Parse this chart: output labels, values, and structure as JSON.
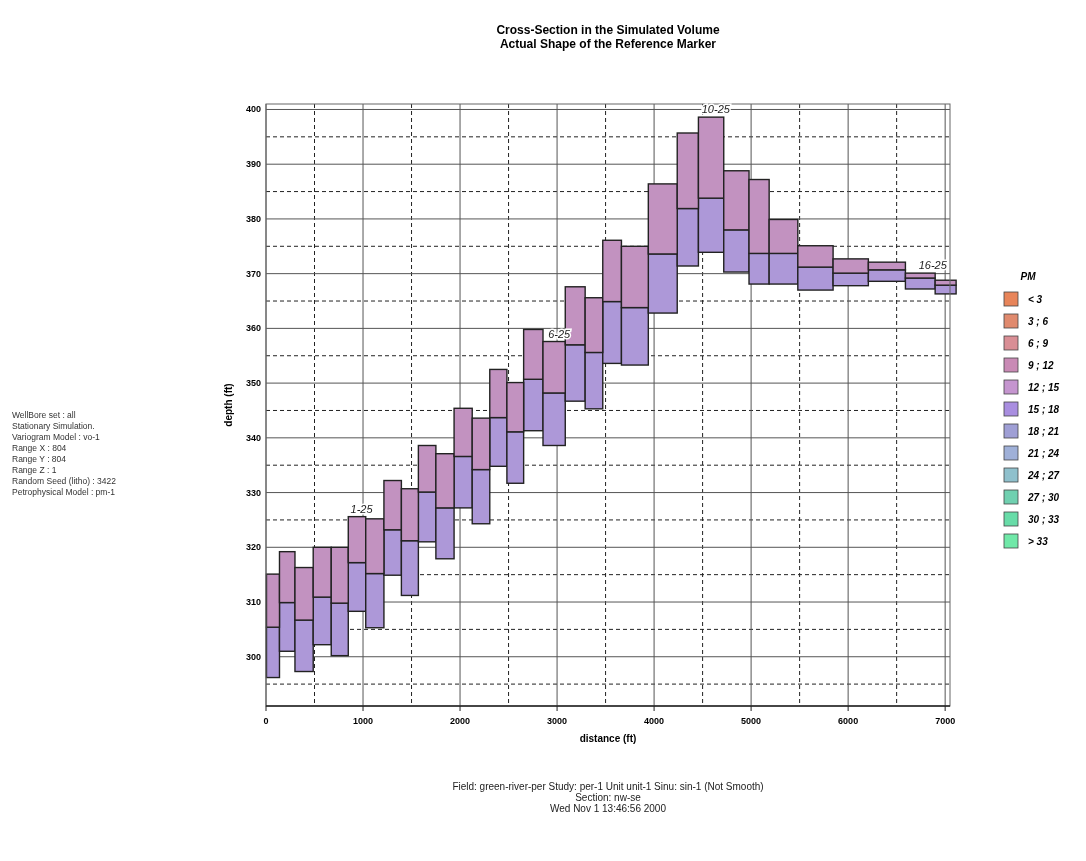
{
  "chart_data": [
    {
      "type": "bar",
      "title": "Cross-Section in the Simulated Volume\nActual Shape of the Reference Marker",
      "xlabel": "distance (ft)",
      "ylabel": "depth (ft)",
      "x": [
        72,
        206,
        391,
        582,
        763,
        933,
        1123,
        1308,
        1483,
        1658,
        1844,
        2033,
        2218,
        2395,
        2571,
        2740,
        2970,
        3199,
        3380,
        3562,
        3765,
        4116,
        4361,
        4553,
        4883,
        5074,
        5298,
        5665,
        6025,
        6392,
        6789,
        7005
      ],
      "series": [
        {
          "color": "#ad98d8",
          "base": [
            296.2,
            301,
            297.3,
            302.2,
            300.2,
            308.3,
            305.3,
            314.9,
            311.2,
            321,
            317.9,
            327.2,
            324.3,
            334.8,
            331.7,
            341.3,
            338.6,
            346.7,
            345.3,
            353.6,
            353.3,
            362.8,
            371.4,
            373.9,
            370.3,
            368.1,
            368.1,
            367,
            367.8,
            368.6,
            367.2,
            366.3
          ],
          "values": [
            9.2,
            8.9,
            9.4,
            8.7,
            9.6,
            8.9,
            9.9,
            8.3,
            10,
            9.1,
            9.3,
            9.4,
            9.9,
            8.9,
            9.4,
            9.4,
            9.6,
            10.3,
            10.3,
            11.3,
            10.5,
            10.8,
            10.5,
            9.9,
            7.7,
            5.6,
            5.6,
            4.2,
            2.3,
            2.1,
            2,
            1.6
          ]
        },
        {
          "color": "#c292c0",
          "base": [
            305.4,
            309.9,
            306.7,
            310.9,
            309.8,
            317.2,
            315.2,
            323.2,
            321.2,
            330.1,
            327.2,
            336.6,
            334.2,
            343.7,
            341.1,
            350.7,
            348.2,
            357,
            355.6,
            364.9,
            363.8,
            373.6,
            381.9,
            383.8,
            378,
            373.7,
            373.7,
            371.2,
            370.1,
            370.7,
            369.2,
            367.9
          ],
          "values": [
            9.7,
            9.3,
            9.6,
            9.1,
            10.2,
            8.4,
            10,
            9,
            9.5,
            8.5,
            9.9,
            8.8,
            9.4,
            8.8,
            9,
            9.1,
            9.4,
            10.6,
            10,
            11.2,
            11.2,
            12.8,
            13.8,
            14.8,
            10.8,
            13.5,
            6.2,
            3.9,
            2.6,
            1.4,
            0.9,
            0.9
          ]
        }
      ],
      "xlim": [
        0,
        7050
      ],
      "ylim": [
        291,
        401
      ],
      "xticks": [
        0,
        1000,
        2000,
        3000,
        4000,
        5000,
        6000,
        7000
      ],
      "yticks": [
        300,
        310,
        320,
        330,
        340,
        350,
        360,
        370,
        380,
        390,
        400
      ],
      "grid": true,
      "annotations": [
        "1-25",
        "6-25",
        "10-25",
        "16-25",
        "WellBore set : all\nStationary Simulation.\nVariogram Model : vo-1\nRange X : 804\nRange Y : 804\nRange Z : 1\nRandom Seed (litho) : 3422\nPetrophysical Model : pm-1",
        "Field: green-river-per  Study: per-1 Unit unit-1  Sinu: sin-1 (Not Smooth)\nSection: nw-se\nWed Nov  1 13:46:56 2000"
      ]
    },
    {
      "type": "other",
      "title": "PM",
      "categories": [
        "< 3",
        "3 ; 6",
        "6 ; 9",
        "9 ; 12",
        "12 ; 15",
        "15 ; 18",
        "18 ; 21",
        "21 ; 24",
        "24 ; 27",
        "27 ; 30",
        "30 ; 33",
        "> 33"
      ],
      "colors": [
        "#e8855a",
        "#e08a6e",
        "#d98e95",
        "#c98ab5",
        "#c595cf",
        "#a98ee0",
        "#9f9fd5",
        "#9fb0d8",
        "#8fc0cc",
        "#70d0b0",
        "#68dca8",
        "#70e8a8"
      ]
    }
  ]
}
